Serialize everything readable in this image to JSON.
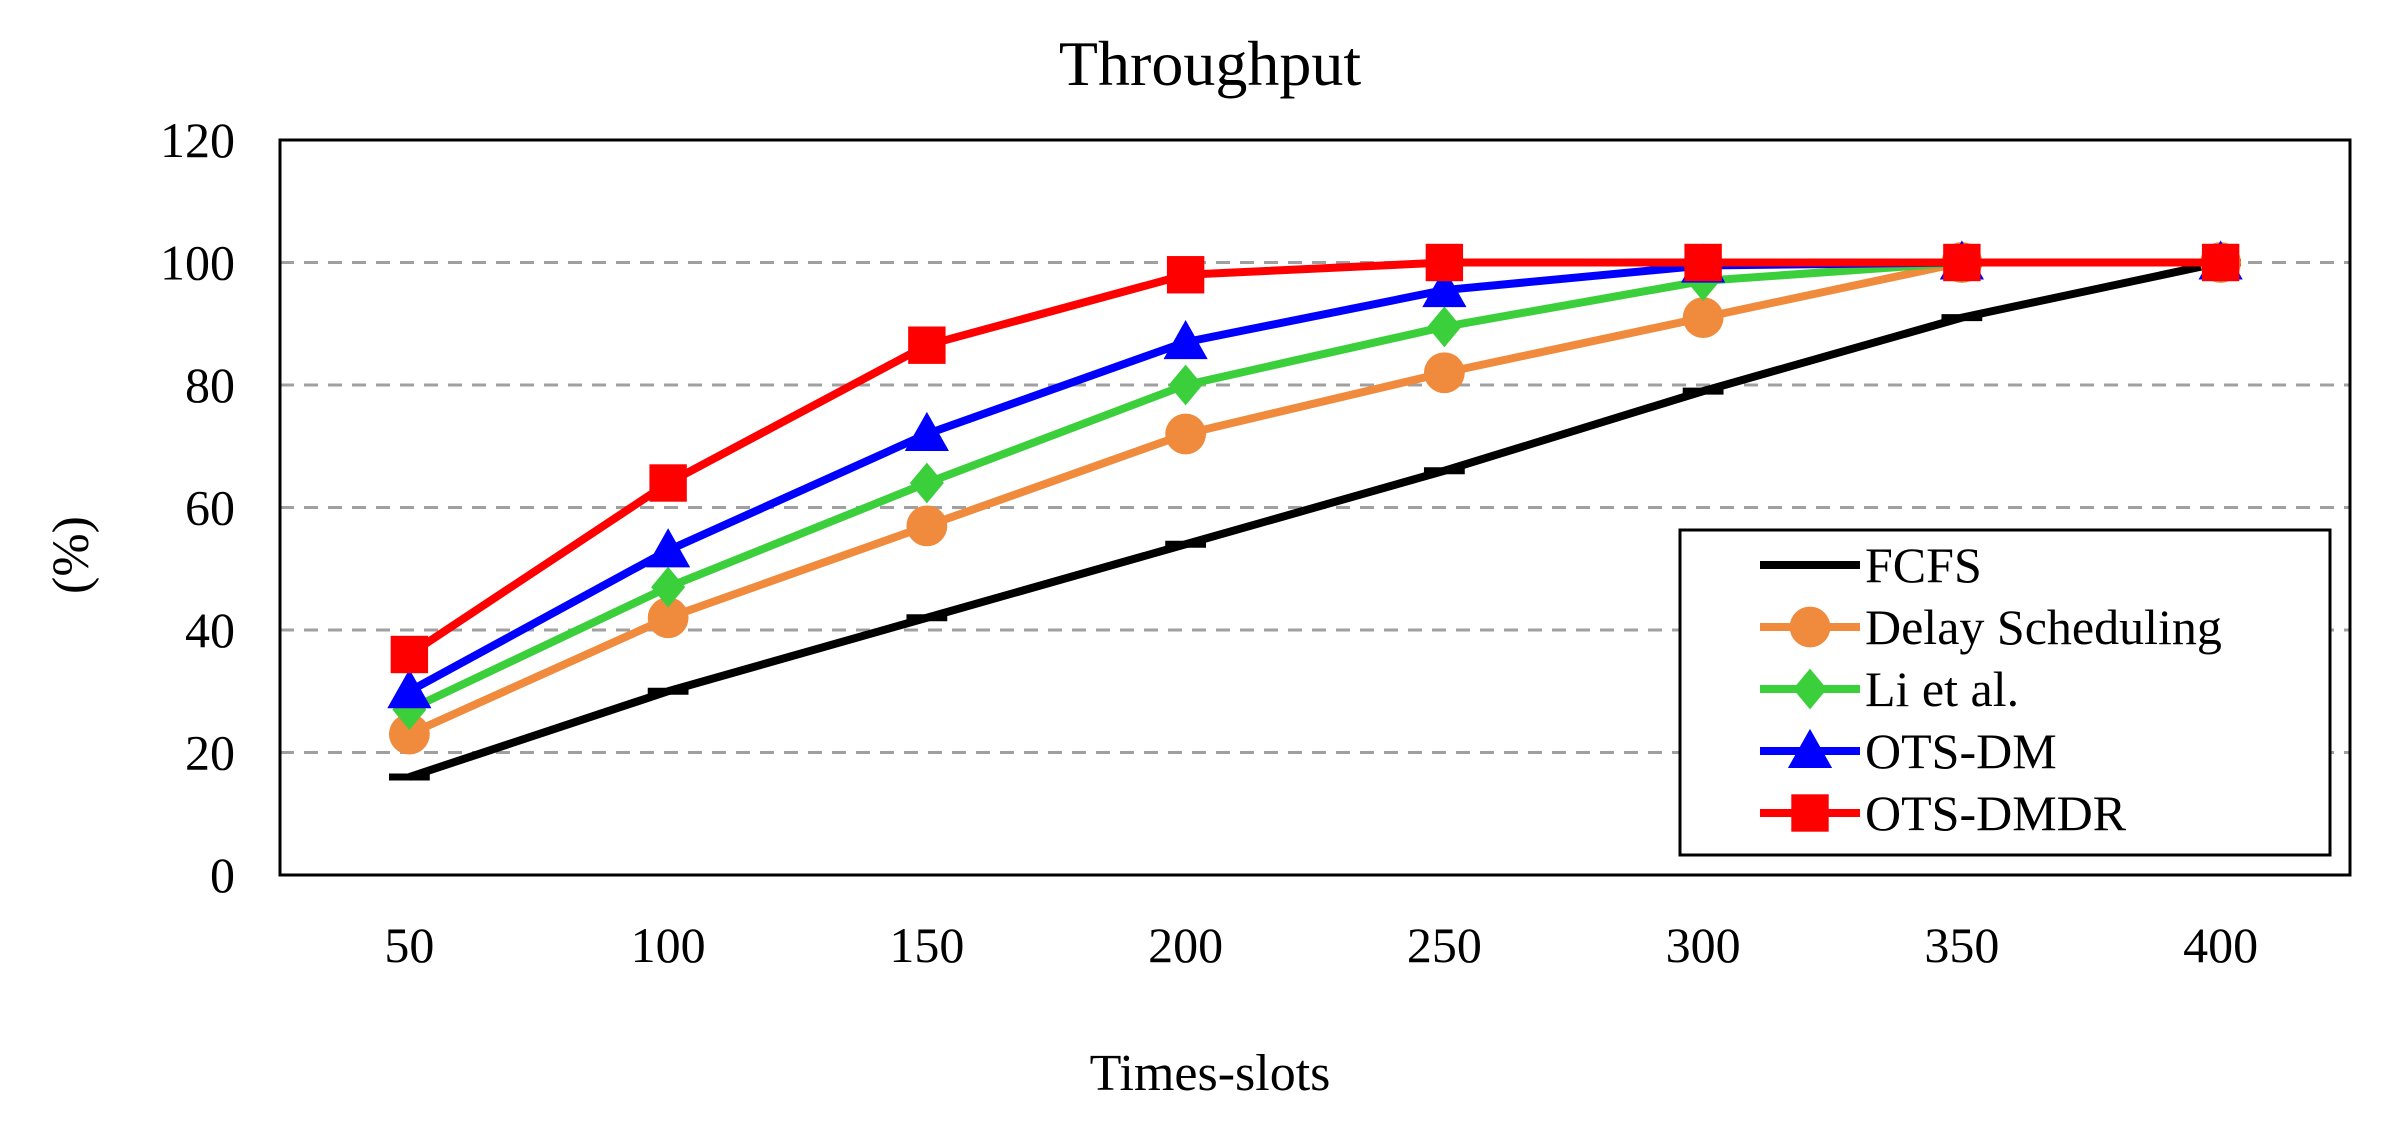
{
  "chart_data": {
    "type": "line",
    "title": "Throughput",
    "xlabel": "Times-slots",
    "ylabel": "(%)",
    "categories": [
      "50",
      "100",
      "150",
      "200",
      "250",
      "300",
      "350",
      "400"
    ],
    "ylim": [
      0,
      120
    ],
    "yticks": [
      "0",
      "20",
      "40",
      "60",
      "80",
      "100",
      "120"
    ],
    "grid": "horizontal dashed",
    "legend_position": "bottom-right",
    "series": [
      {
        "name": "FCFS",
        "color": "#000000",
        "marker": "none",
        "values": [
          16,
          30,
          42,
          54,
          66,
          79,
          91,
          100
        ]
      },
      {
        "name": "Delay Scheduling",
        "color": "#f08a3c",
        "marker": "circle",
        "values": [
          23,
          42,
          57,
          72,
          82,
          91,
          100,
          100
        ]
      },
      {
        "name": "Li et al.",
        "color": "#3ccf3c",
        "marker": "diamond",
        "values": [
          27,
          47,
          64,
          80,
          89.5,
          97,
          100,
          100
        ]
      },
      {
        "name": "OTS-DM",
        "color": "#0000ff",
        "marker": "triangle",
        "values": [
          30,
          53,
          72,
          87,
          95.5,
          99.5,
          100,
          100
        ]
      },
      {
        "name": "OTS-DMDR",
        "color": "#ff0000",
        "marker": "square",
        "values": [
          36,
          64,
          86.5,
          98,
          100,
          100,
          100,
          100
        ]
      }
    ]
  }
}
